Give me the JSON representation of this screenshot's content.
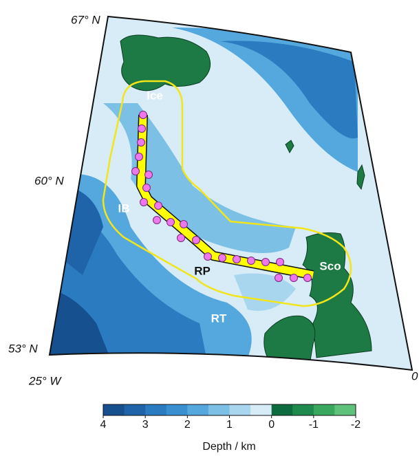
{
  "map": {
    "lat_labels": [
      "67° N",
      "60° N",
      "53° N"
    ],
    "lon_labels": [
      "25° W",
      "0°"
    ],
    "region_labels": {
      "ice": "Ice",
      "ib": "IB",
      "rp": "RP",
      "rt": "RT",
      "sco": "Sco"
    },
    "colorbar": {
      "label": "Depth / km",
      "lim": [
        4,
        -2
      ],
      "ticks": [
        4,
        3,
        2,
        1,
        0,
        -1,
        -2
      ],
      "colors": [
        "#17508f",
        "#1f63a8",
        "#2a7bc0",
        "#3a8fd0",
        "#55a8dd",
        "#7cc0e6",
        "#a9d6ef",
        "#d7ecf7",
        "#0c6b3f",
        "#1e8a4e",
        "#39a85e",
        "#5fc27a"
      ]
    }
  }
}
